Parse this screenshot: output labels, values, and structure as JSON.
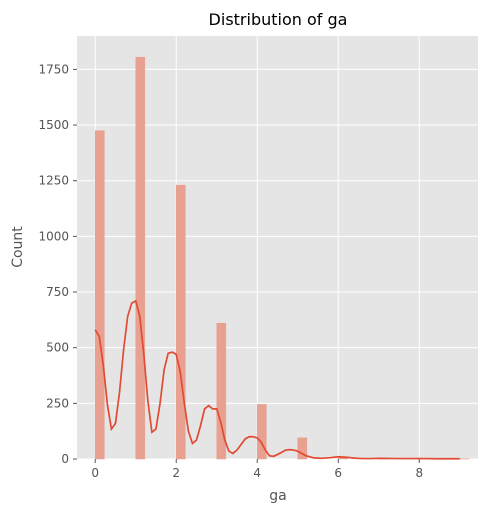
{
  "chart_data": {
    "type": "bar",
    "title": "Distribution of ga",
    "xlabel": "ga",
    "ylabel": "Count",
    "xlim": [
      -0.45,
      9.45
    ],
    "ylim": [
      0,
      1900
    ],
    "xticks": [
      0,
      2,
      4,
      6,
      8
    ],
    "yticks": [
      0,
      250,
      500,
      750,
      1000,
      1250,
      1500,
      1750
    ],
    "ytick_labels": [
      "0",
      "250",
      "500",
      "750",
      "1000",
      "1250",
      "1500",
      "1750"
    ],
    "grid": true,
    "bin_width": 0.225,
    "series": [
      {
        "name": "histogram",
        "x": [
          0,
          1,
          2,
          3,
          4,
          5,
          6,
          7,
          8,
          9
        ],
        "values": [
          1475,
          1805,
          1230,
          610,
          245,
          95,
          10,
          5,
          2,
          1
        ]
      }
    ],
    "kde": {
      "x": [
        0,
        0.1,
        0.2,
        0.3,
        0.4,
        0.5,
        0.6,
        0.7,
        0.8,
        0.9,
        1.0,
        1.1,
        1.2,
        1.3,
        1.4,
        1.5,
        1.6,
        1.7,
        1.8,
        1.9,
        2.0,
        2.1,
        2.2,
        2.3,
        2.4,
        2.5,
        2.6,
        2.7,
        2.8,
        2.9,
        3.0,
        3.1,
        3.2,
        3.3,
        3.4,
        3.5,
        3.6,
        3.7,
        3.8,
        3.9,
        4.0,
        4.1,
        4.2,
        4.3,
        4.4,
        4.5,
        4.6,
        4.7,
        4.8,
        4.9,
        5.0,
        5.2,
        5.4,
        5.6,
        5.8,
        6.0,
        6.2,
        6.4,
        6.6,
        6.8,
        7.0,
        7.5,
        8.0,
        8.5,
        9.0
      ],
      "y": [
        580,
        550,
        420,
        245,
        135,
        160,
        300,
        490,
        640,
        700,
        710,
        640,
        470,
        260,
        120,
        135,
        250,
        400,
        475,
        480,
        470,
        390,
        250,
        125,
        70,
        85,
        150,
        225,
        240,
        225,
        225,
        165,
        85,
        35,
        25,
        40,
        65,
        90,
        100,
        100,
        95,
        75,
        40,
        15,
        12,
        20,
        30,
        40,
        42,
        40,
        35,
        15,
        5,
        3,
        6,
        10,
        8,
        4,
        2,
        2,
        3,
        2,
        2,
        1,
        1
      ]
    },
    "colors": {
      "bar": "#e8a090",
      "kde": "#e24a33",
      "panel": "#e5e5e5",
      "grid": "#ffffff"
    }
  }
}
